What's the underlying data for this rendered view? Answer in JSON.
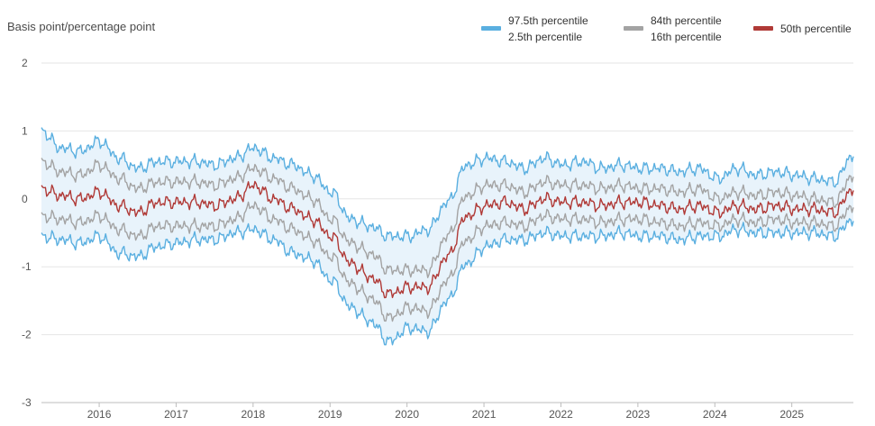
{
  "chart_data": {
    "type": "line",
    "ylabel": "Basis point/percentage point",
    "ylim": [
      -3,
      2
    ],
    "yticks": [
      "2",
      "1",
      "0",
      "-1",
      "-2",
      "-3"
    ],
    "xticks": [
      "2016",
      "2017",
      "2018",
      "2019",
      "2020",
      "2021",
      "2022",
      "2023",
      "2024",
      "2025"
    ],
    "xrange": [
      2015.25,
      2025.8
    ],
    "grid": "horizontal",
    "legend_position": "top-right",
    "legend": [
      {
        "labels": [
          "97.5th percentile",
          "2.5th percentile"
        ],
        "color": "#5aafe0"
      },
      {
        "labels": [
          "84th percentile",
          "16th percentile"
        ],
        "color": "#a3a3a3"
      },
      {
        "labels": [
          "50th percentile"
        ],
        "color": "#b03a37"
      }
    ],
    "band_fill": "#e8f3fb",
    "x": [
      2015.25,
      2015.5,
      2015.75,
      2016.0,
      2016.25,
      2016.5,
      2016.75,
      2017.0,
      2017.25,
      2017.5,
      2017.75,
      2018.0,
      2018.25,
      2018.5,
      2018.75,
      2019.0,
      2019.25,
      2019.5,
      2019.75,
      2020.0,
      2020.25,
      2020.5,
      2020.75,
      2021.0,
      2021.25,
      2021.5,
      2021.75,
      2022.0,
      2022.25,
      2022.5,
      2022.75,
      2023.0,
      2023.25,
      2023.5,
      2023.75,
      2024.0,
      2024.25,
      2024.5,
      2024.75,
      2025.0,
      2025.25,
      2025.5,
      2025.8
    ],
    "series": [
      {
        "name": "97.5th percentile",
        "values": [
          1.0,
          0.75,
          0.7,
          0.85,
          0.6,
          0.45,
          0.55,
          0.55,
          0.55,
          0.5,
          0.6,
          0.75,
          0.6,
          0.5,
          0.35,
          0.1,
          -0.3,
          -0.4,
          -0.55,
          -0.55,
          -0.45,
          -0.05,
          0.5,
          0.6,
          0.55,
          0.45,
          0.6,
          0.5,
          0.55,
          0.45,
          0.5,
          0.45,
          0.45,
          0.4,
          0.45,
          0.3,
          0.45,
          0.35,
          0.4,
          0.35,
          0.3,
          0.25,
          0.65
        ]
      },
      {
        "name": "84th percentile",
        "values": [
          0.55,
          0.4,
          0.35,
          0.5,
          0.3,
          0.15,
          0.25,
          0.25,
          0.25,
          0.2,
          0.3,
          0.45,
          0.3,
          0.15,
          0.0,
          -0.3,
          -0.65,
          -0.8,
          -1.05,
          -1.05,
          -1.05,
          -0.55,
          0.05,
          0.2,
          0.2,
          0.1,
          0.25,
          0.2,
          0.2,
          0.15,
          0.2,
          0.15,
          0.15,
          0.1,
          0.15,
          0.0,
          0.1,
          0.05,
          0.1,
          0.05,
          0.0,
          -0.05,
          0.35
        ]
      },
      {
        "name": "50th percentile",
        "values": [
          0.15,
          0.05,
          0.0,
          0.1,
          -0.1,
          -0.2,
          -0.05,
          -0.05,
          -0.05,
          -0.1,
          0.0,
          0.2,
          0.0,
          -0.15,
          -0.3,
          -0.55,
          -0.95,
          -1.15,
          -1.4,
          -1.3,
          -1.3,
          -0.85,
          -0.25,
          -0.1,
          -0.05,
          -0.15,
          0.0,
          -0.05,
          -0.05,
          -0.1,
          -0.05,
          -0.05,
          -0.1,
          -0.15,
          -0.1,
          -0.2,
          -0.1,
          -0.15,
          -0.1,
          -0.15,
          -0.15,
          -0.2,
          0.15
        ]
      },
      {
        "name": "16th percentile",
        "values": [
          -0.25,
          -0.3,
          -0.35,
          -0.25,
          -0.45,
          -0.55,
          -0.4,
          -0.4,
          -0.4,
          -0.4,
          -0.3,
          -0.1,
          -0.3,
          -0.45,
          -0.6,
          -0.85,
          -1.25,
          -1.45,
          -1.75,
          -1.6,
          -1.65,
          -1.2,
          -0.6,
          -0.4,
          -0.35,
          -0.4,
          -0.25,
          -0.3,
          -0.3,
          -0.35,
          -0.3,
          -0.3,
          -0.35,
          -0.4,
          -0.35,
          -0.4,
          -0.3,
          -0.35,
          -0.3,
          -0.35,
          -0.35,
          -0.4,
          -0.1
        ]
      },
      {
        "name": "2.5th percentile",
        "values": [
          -0.55,
          -0.6,
          -0.65,
          -0.55,
          -0.8,
          -0.85,
          -0.7,
          -0.65,
          -0.6,
          -0.6,
          -0.5,
          -0.45,
          -0.6,
          -0.8,
          -0.9,
          -1.2,
          -1.6,
          -1.8,
          -2.1,
          -1.9,
          -1.95,
          -1.5,
          -0.95,
          -0.7,
          -0.6,
          -0.6,
          -0.5,
          -0.55,
          -0.55,
          -0.55,
          -0.5,
          -0.55,
          -0.55,
          -0.6,
          -0.55,
          -0.55,
          -0.45,
          -0.5,
          -0.5,
          -0.5,
          -0.5,
          -0.55,
          -0.3
        ]
      }
    ]
  }
}
